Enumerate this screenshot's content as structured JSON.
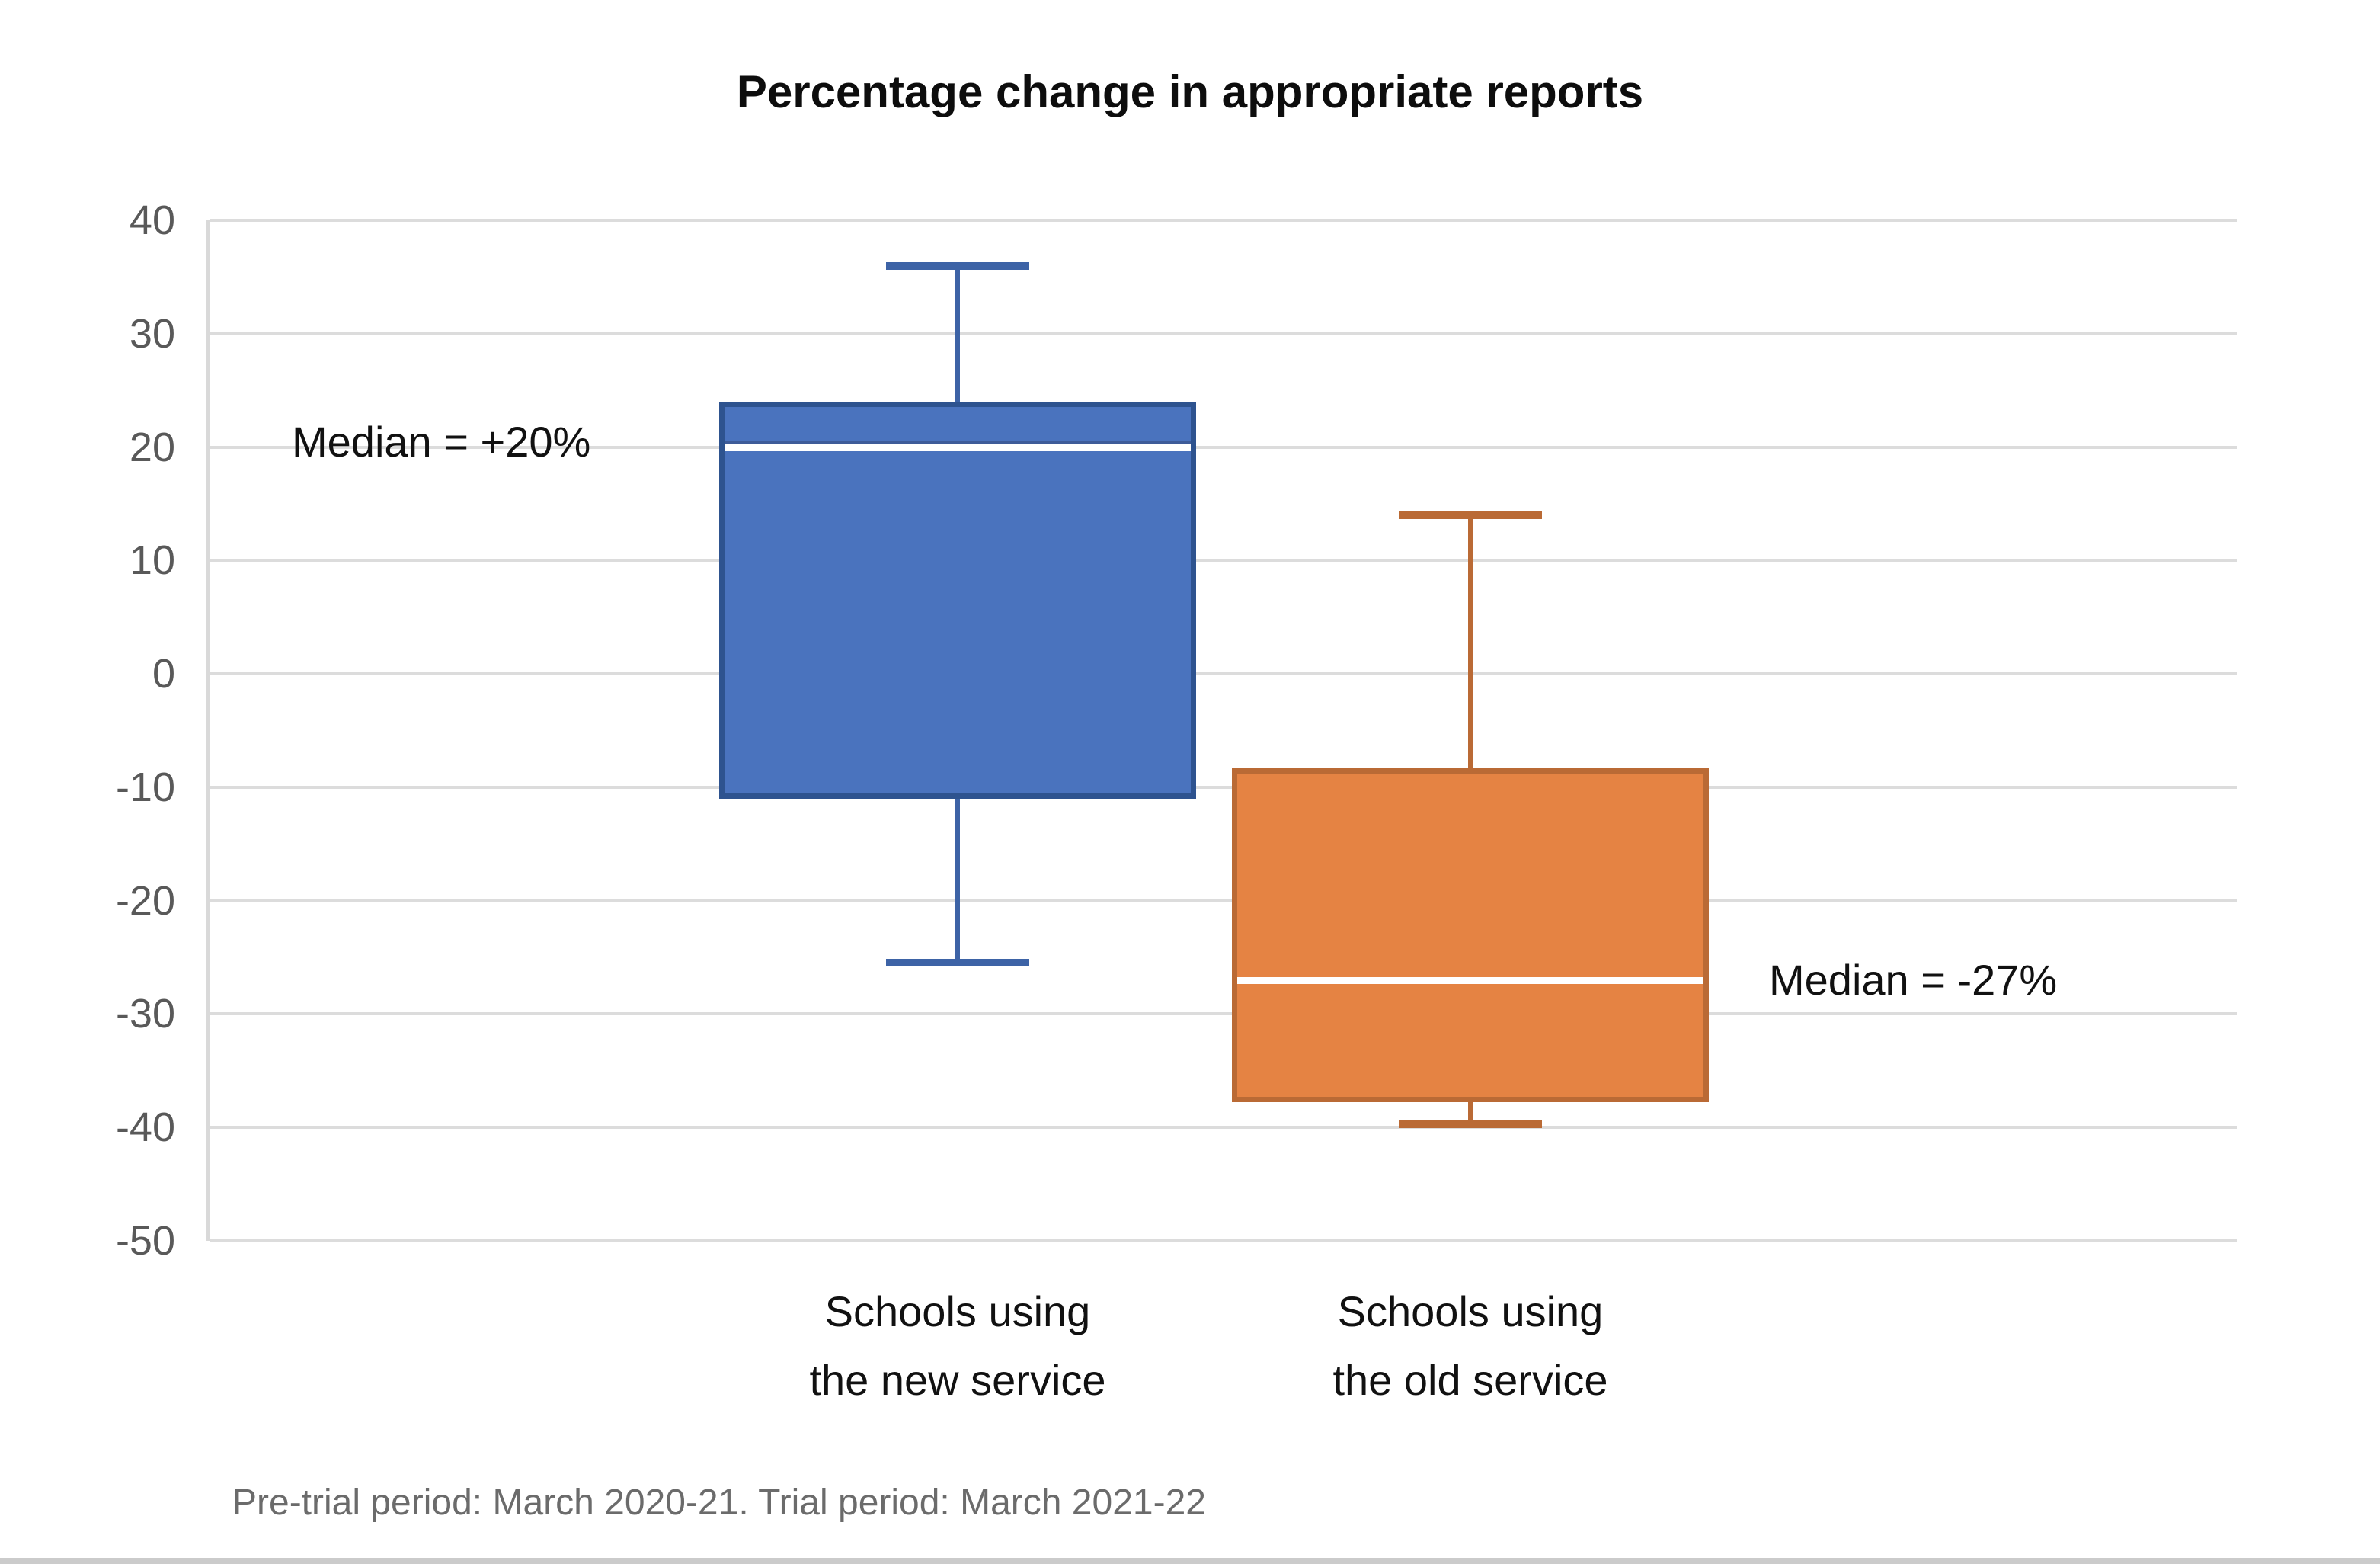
{
  "footer": "Pre-trial period: March 2020-21. Trial period: March 2021-22",
  "chart_data": {
    "type": "boxplot",
    "title": "Percentage change in appropriate reports",
    "ylabel": "",
    "xlabel": "",
    "ylim": [
      -50,
      40
    ],
    "ytick_interval": 10,
    "yticks": [
      40,
      30,
      20,
      10,
      0,
      -10,
      -20,
      -30,
      -40,
      -50
    ],
    "grid": true,
    "legend": false,
    "categories": [
      {
        "line1": "Schools using",
        "line2": "the new service"
      },
      {
        "line1": "Schools using",
        "line2": "the old service"
      }
    ],
    "series": [
      {
        "name": "Schools using the new service",
        "min": -25.5,
        "q1": -11,
        "median": 20,
        "q3": 24,
        "max": 36,
        "fill_color": "#4A73BE",
        "border_color": "#2E538F",
        "whisker_color": "#3D63A6",
        "median_line_color": "#FFFFFF",
        "median_edge_color": "#3E5C99"
      },
      {
        "name": "Schools using the old service",
        "min": -39.7,
        "q1": -37.8,
        "median": -27,
        "q3": -8.3,
        "max": 14,
        "fill_color": "#E58343",
        "border_color": "#BA6A35",
        "whisker_color": "#BA6A35",
        "median_line_color": "#FFFFFF"
      }
    ],
    "annotations": [
      {
        "text": "Median = +20%",
        "anchor": "left-of-new-service-box"
      },
      {
        "text": "Median = -27%",
        "anchor": "right-of-old-service-box"
      }
    ],
    "gridline_color": "#DCDCDC",
    "tick_label_color": "#595959",
    "footer_color": "#6B6B6B"
  }
}
